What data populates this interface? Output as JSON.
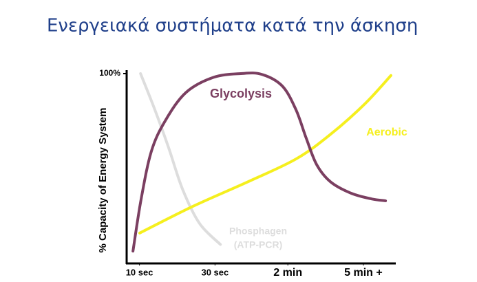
{
  "chart_data": {
    "type": "line",
    "title": "Ενεργειακά συστήματα κατά την άσκηση",
    "y_label": "% Capacity of Energy System",
    "xlim": [
      0,
      100
    ],
    "xticks": [
      {
        "value": 5,
        "label": "10 sec"
      },
      {
        "value": 33,
        "label": "30 sec"
      },
      {
        "value": 60,
        "label": "2 min"
      },
      {
        "value": 88,
        "label": "5 min +"
      }
    ],
    "ylim": [
      0,
      100
    ],
    "yticks": [
      {
        "value": 100,
        "label": "100%"
      }
    ],
    "series": [
      {
        "name": "Glycolysis",
        "color": "#7b3f61",
        "x": [
          2.6,
          5.6,
          9.4,
          14.5,
          22.2,
          32.4,
          42.6,
          50.3,
          57.9,
          63,
          66.8,
          70.7,
          75.8,
          83.4,
          91,
          96.2
        ],
        "values": [
          6.5,
          33.7,
          59,
          75,
          90,
          98,
          100,
          99.6,
          93.5,
          81,
          66,
          52,
          43,
          37,
          34,
          33
        ]
      },
      {
        "name": "Aerobic",
        "color": "#f5ef1e",
        "x": [
          5.1,
          24.7,
          45.2,
          63,
          75.8,
          88.5,
          98.2
        ],
        "values": [
          16,
          30,
          43,
          55,
          68,
          84,
          99
        ]
      },
      {
        "name": "Phosphagen",
        "color": "#dddddd",
        "x": [
          5.4,
          10.7,
          15.8,
          21,
          27.3,
          35
        ],
        "values": [
          100,
          81,
          61,
          39,
          21,
          10
        ]
      }
    ],
    "annotations": [
      "(ATP-PCR)"
    ]
  }
}
